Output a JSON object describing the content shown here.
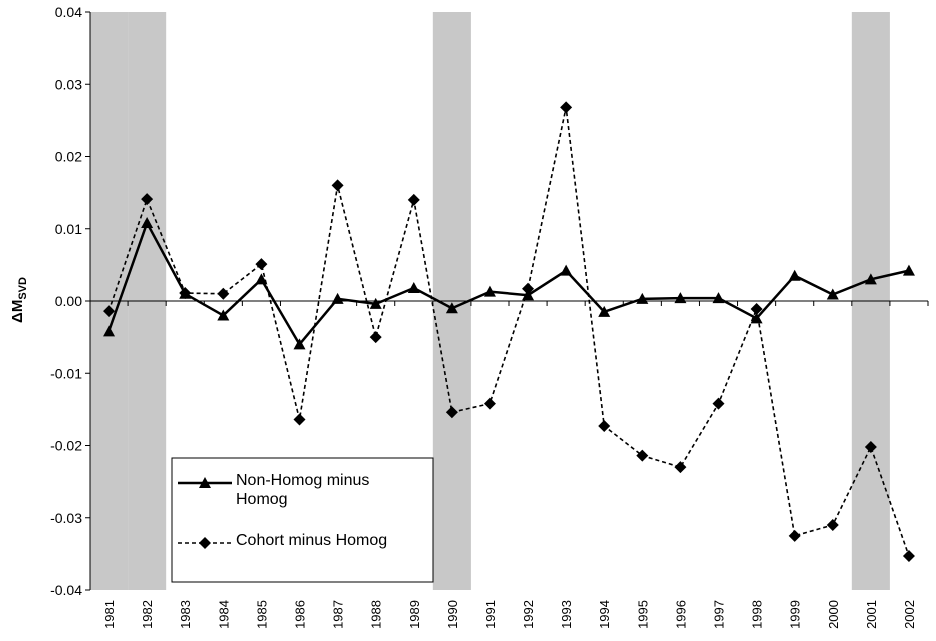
{
  "chart_data": {
    "type": "line",
    "ylabel": "ΔM",
    "ylabel_sub": "SVD",
    "categories": [
      "1981",
      "1982",
      "1983",
      "1984",
      "1985",
      "1986",
      "1987",
      "1988",
      "1989",
      "1990",
      "1991",
      "1992",
      "1993",
      "1994",
      "1995",
      "1996",
      "1997",
      "1998",
      "1999",
      "2000",
      "2001",
      "2002"
    ],
    "series": [
      {
        "name": "Non-Homog minus Homog",
        "color": "#000000",
        "style": "solid",
        "marker": "triangle",
        "values": [
          -0.0042,
          0.0108,
          0.001,
          -0.002,
          0.003,
          -0.006,
          0.0003,
          -0.0004,
          0.0018,
          -0.001,
          0.0013,
          0.0008,
          0.0042,
          -0.0015,
          0.0003,
          0.0004,
          0.0004,
          -0.0024,
          0.0035,
          0.0009,
          0.003,
          0.0042
        ]
      },
      {
        "name": "Cohort minus Homog",
        "color": "#000000",
        "style": "dashed",
        "marker": "diamond",
        "values": [
          -0.0014,
          0.0141,
          0.0011,
          0.001,
          0.0051,
          -0.0164,
          0.016,
          -0.005,
          0.014,
          -0.0154,
          -0.0142,
          0.0017,
          0.0268,
          -0.0173,
          -0.0214,
          -0.023,
          -0.0142,
          -0.0011,
          -0.0325,
          -0.031,
          -0.0202,
          -0.0353
        ]
      }
    ],
    "ylim": [
      -0.04,
      0.04
    ],
    "yticks": [
      -0.04,
      -0.03,
      -0.02,
      -0.01,
      {
        "value": 0,
        "label": "0.00"
      },
      0.01,
      0.02,
      0.03,
      0.04
    ],
    "shaded_indices": [
      0,
      1,
      9,
      20
    ],
    "shade_color": "#c8c8c8",
    "grid": false,
    "legend": "lower-left"
  }
}
